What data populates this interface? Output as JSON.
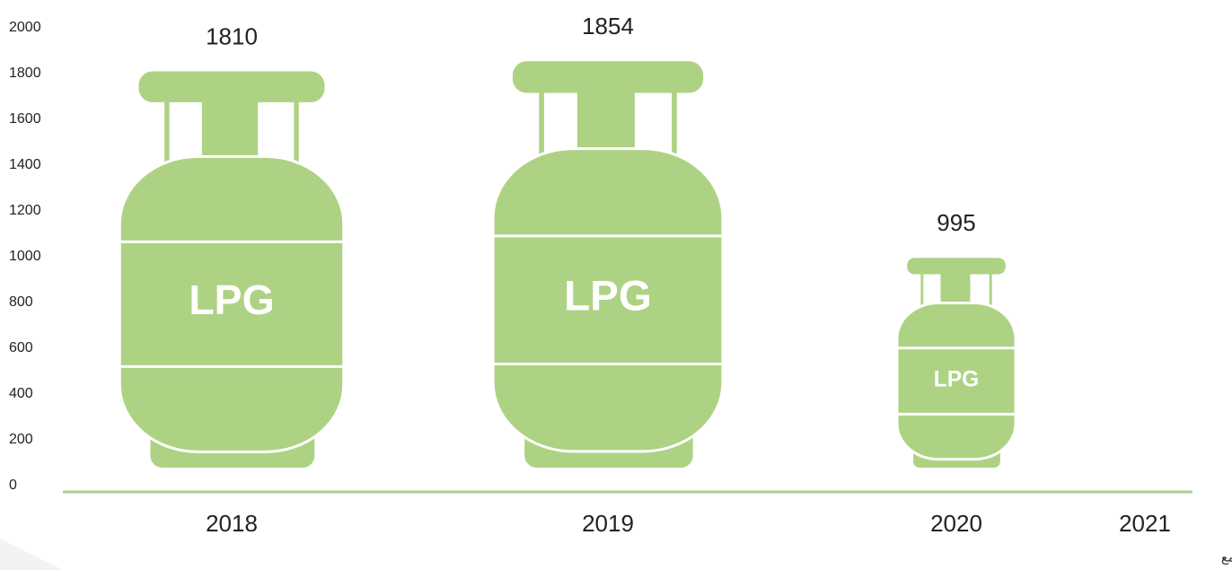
{
  "chart_data": {
    "type": "pictorial-bar",
    "categories": [
      "2018",
      "2019",
      "2020",
      "2021"
    ],
    "values": [
      1810,
      1854,
      995,
      null
    ],
    "color": "#aed283",
    "icon_label": "LPG",
    "ylim": [
      0,
      2000
    ],
    "yticks": [
      0,
      200,
      400,
      600,
      800,
      1000,
      1200,
      1400,
      1600,
      1800,
      2000
    ],
    "annotation": "البيانات قيد الجمع"
  }
}
